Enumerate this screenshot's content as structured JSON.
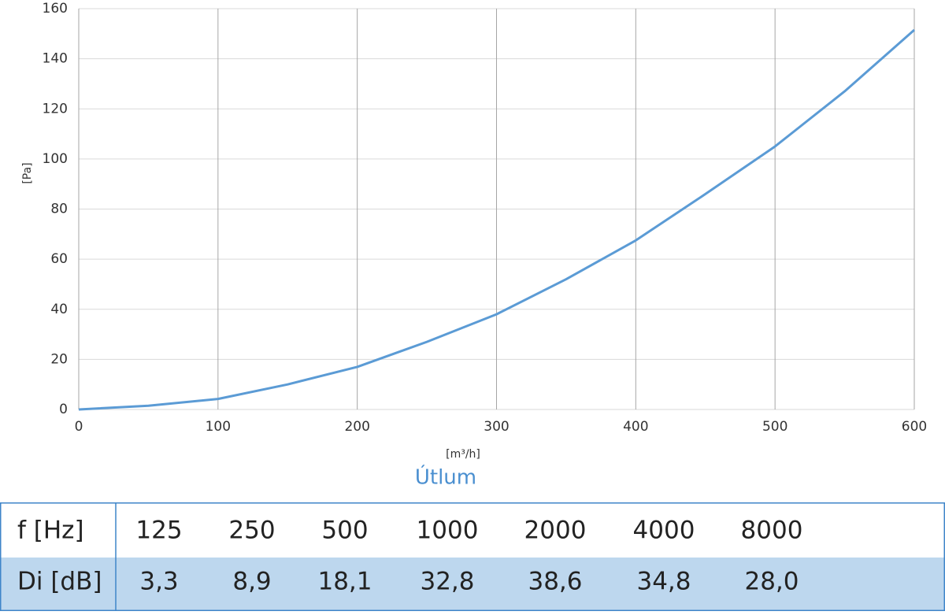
{
  "chart_data": {
    "type": "line",
    "y_label": "[Pa]",
    "x_label": "[m³/h]",
    "x": [
      0,
      50,
      100,
      150,
      200,
      250,
      300,
      350,
      400,
      450,
      500,
      550,
      600
    ],
    "values": [
      0,
      1.5,
      4.2,
      10,
      17,
      27,
      38,
      52,
      67.5,
      86,
      105,
      127,
      151.5
    ],
    "color": "#5b9bd5",
    "xlim": [
      0,
      600
    ],
    "xticks": [
      0,
      100,
      200,
      300,
      400,
      500,
      600
    ],
    "ylim": [
      0,
      160
    ],
    "yticks": [
      0,
      20,
      40,
      60,
      80,
      100,
      120,
      140,
      160
    ],
    "grid": true
  },
  "table": {
    "title": "Útlum",
    "rows": [
      [
        "f [Hz]",
        "125",
        "250",
        "500",
        "1000",
        "2000",
        "4000",
        "8000"
      ],
      [
        "Di [dB]",
        "3,3",
        "8,9",
        "18,1",
        "32,8",
        "38,6",
        "34,8",
        "28,0"
      ]
    ]
  }
}
